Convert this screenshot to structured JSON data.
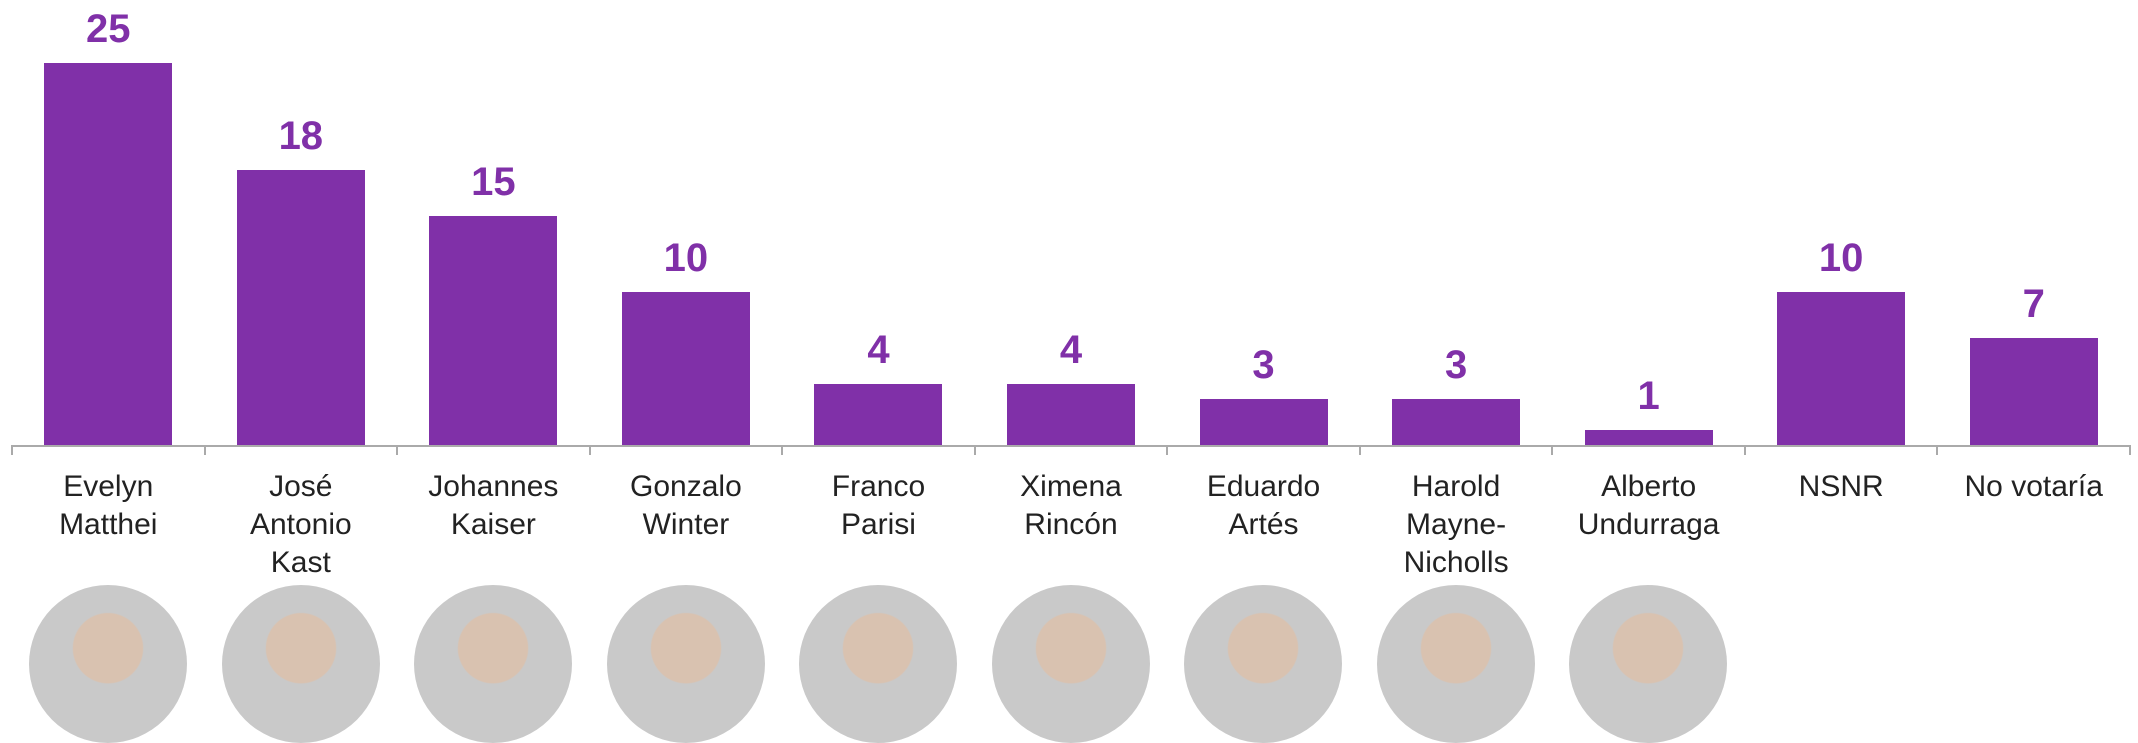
{
  "chart_data": {
    "type": "bar",
    "categories": [
      "Evelyn Matthei",
      "José Antonio Kast",
      "Johannes Kaiser",
      "Gonzalo Winter",
      "Franco Parisi",
      "Ximena Rincón",
      "Eduardo Artés",
      "Harold Mayne-Nicholls",
      "Alberto Undurraga",
      "NSNR",
      "No votaría"
    ],
    "values": [
      25,
      18,
      15,
      10,
      4,
      4,
      3,
      3,
      1,
      10,
      7
    ],
    "color": "#8030a8"
  }
}
